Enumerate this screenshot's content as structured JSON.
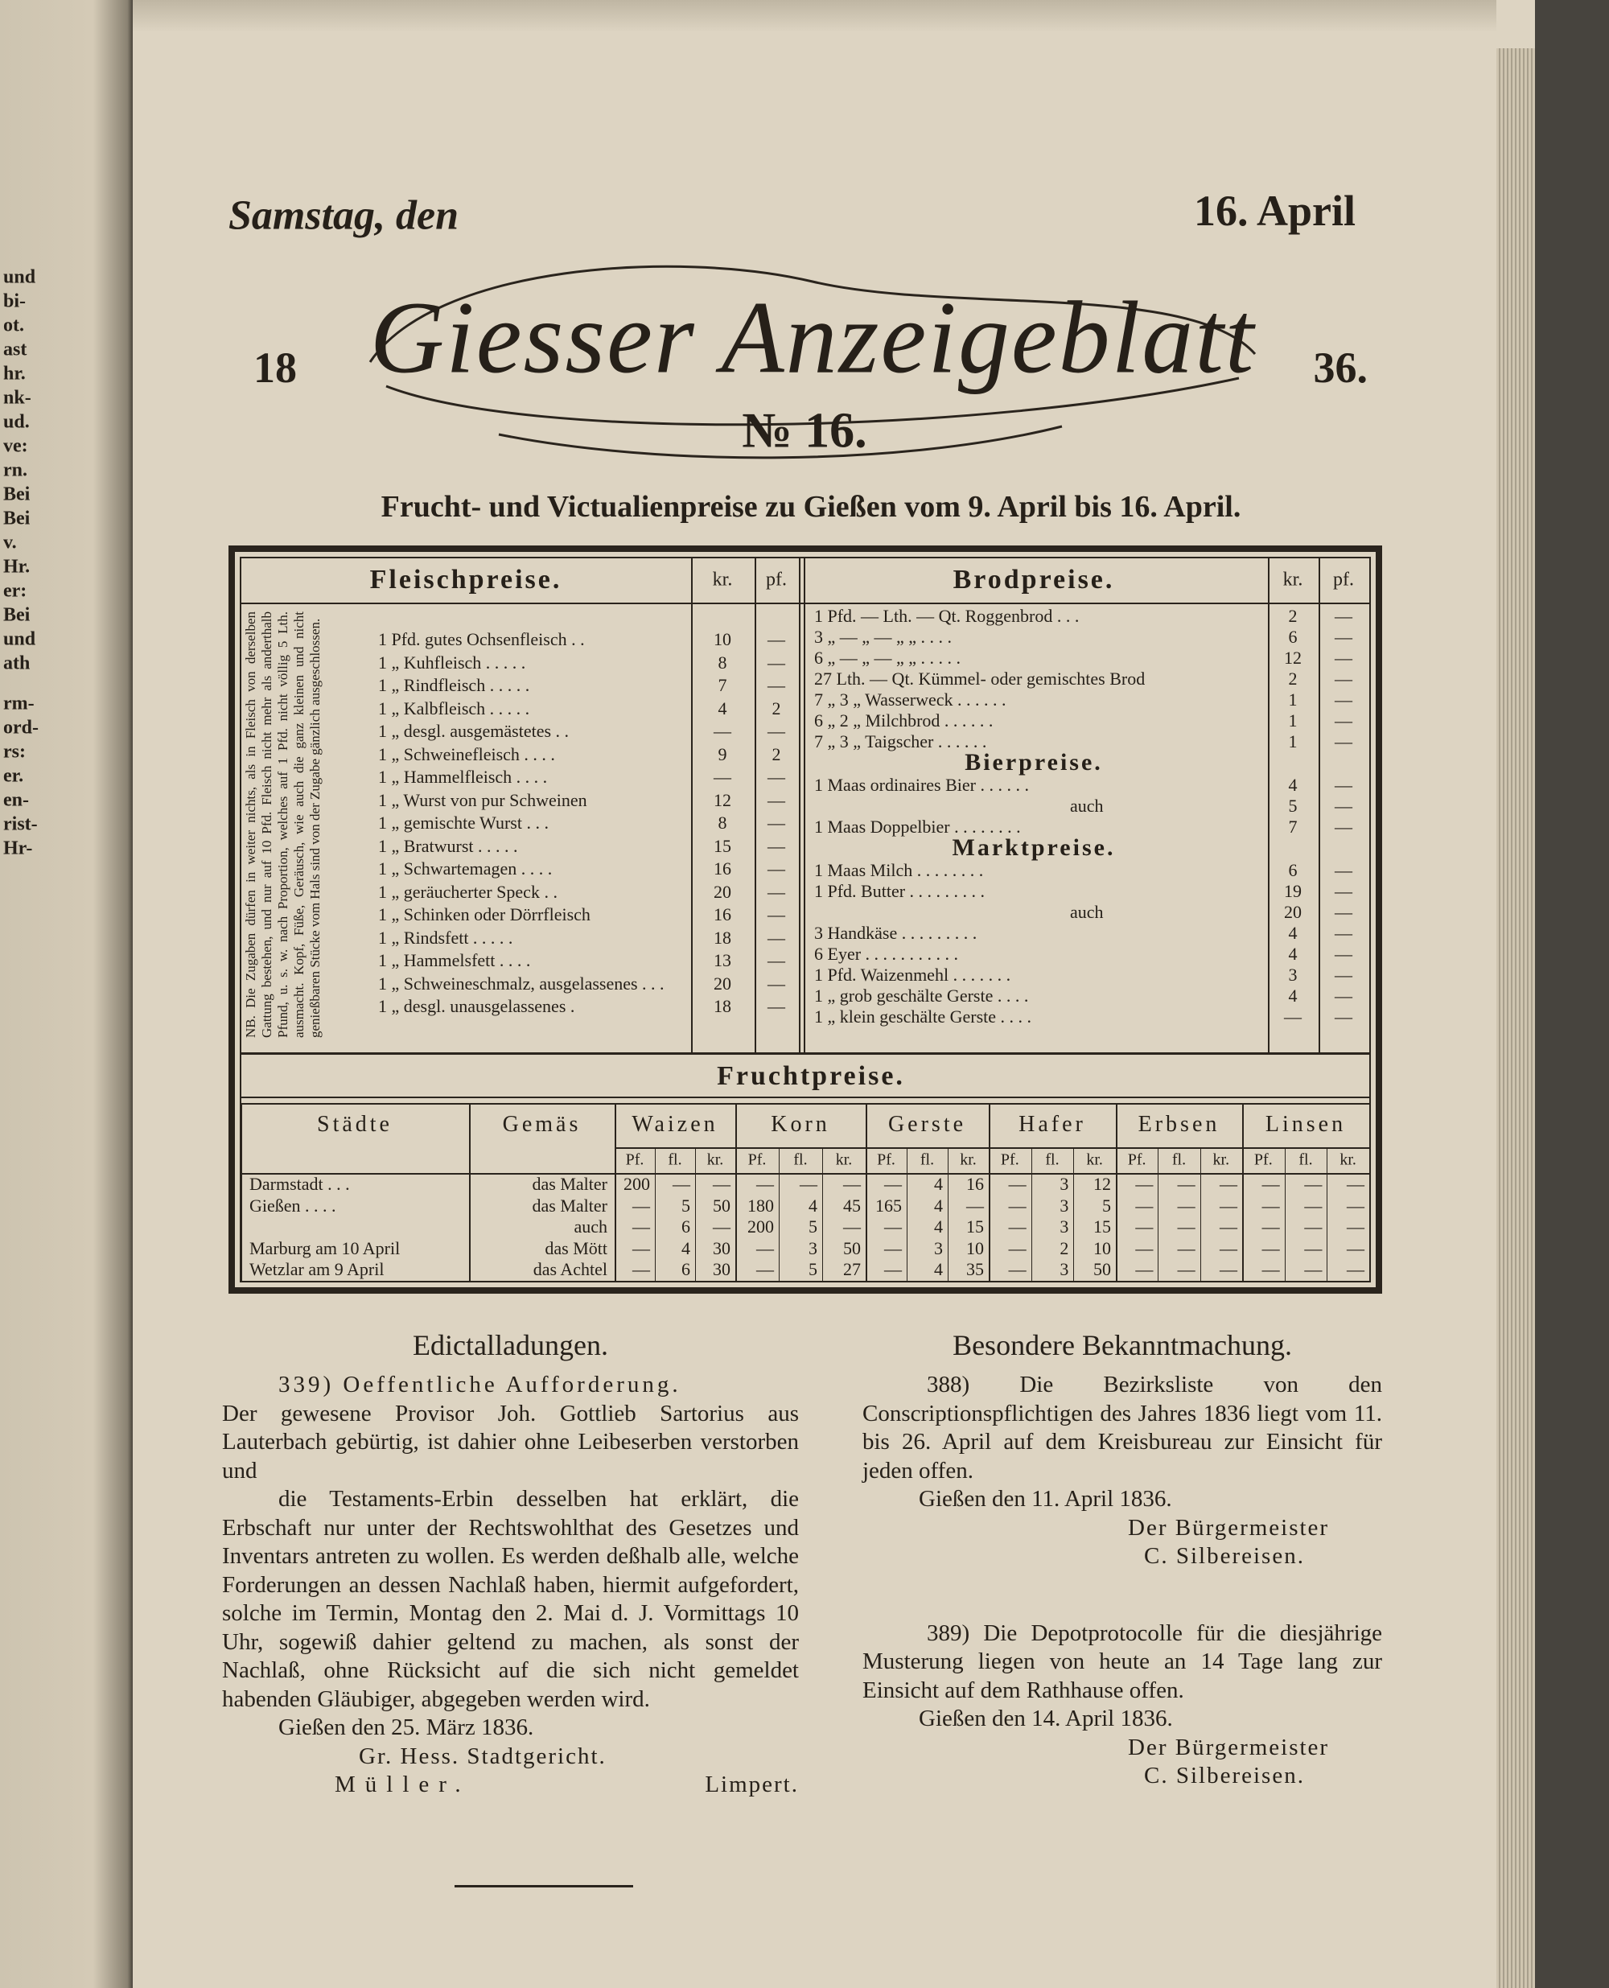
{
  "left_margin": [
    "und",
    "bi-",
    "ot.",
    "ast",
    "hr.",
    "nk-",
    "ud.",
    "ve:",
    "rn.",
    "Bei",
    "Bei",
    "v.",
    "Hr.",
    "er:",
    "Bei",
    "und",
    "ath",
    "rm-",
    "ord-",
    "rs:",
    "er.",
    "en-",
    "rist-",
    "Hr-"
  ],
  "header": {
    "day": "Samstag, den",
    "date": "16. April",
    "year_left": "18",
    "year_right": "36.",
    "masthead": "Giesser Anzeigeblatt",
    "number": "№ 16."
  },
  "subtitle": "Frucht- und Victualienpreise zu Gießen vom 9. April bis 16. April.",
  "price_table": {
    "meat": {
      "title": "Fleischpreise.",
      "columns": [
        "kr.",
        "pf."
      ],
      "note": "NB. Die Zugaben dürfen in weiter nichts, als in Fleisch von derselben Gattung bestehen, und nur auf 10 Pfd. Fleisch nicht mehr als anderthalb Pfund, u. s. w. nach Proportion, welches auf 1 Pfd. nicht völlig 5 Lth. ausmacht. Kopf, Füße, Geräusch, wie auch die ganz kleinen und nicht genießbaren Stücke vom Hals sind von der Zugabe gänzlich ausgeschlossen.",
      "rows": [
        [
          "1 Pfd. gutes Ochsenfleisch . .",
          "10",
          "—"
        ],
        [
          "1 „ Kuhfleisch . . . . .",
          "8",
          "—"
        ],
        [
          "1 „ Rindfleisch . . . . .",
          "7",
          "—"
        ],
        [
          "1 „ Kalbfleisch . . . . .",
          "4",
          "2"
        ],
        [
          "1 „ desgl. ausgemästetes . .",
          "—",
          "—"
        ],
        [
          "1 „ Schweinefleisch . . . .",
          "9",
          "2"
        ],
        [
          "1 „ Hammelfleisch . . . .",
          "—",
          "—"
        ],
        [
          "1 „ Wurst von pur Schweinen",
          "12",
          "—"
        ],
        [
          "1 „ gemischte Wurst . . .",
          "8",
          "—"
        ],
        [
          "1 „ Bratwurst . . . . .",
          "15",
          "—"
        ],
        [
          "1 „ Schwartemagen . . . .",
          "16",
          "—"
        ],
        [
          "1 „ geräucherter Speck . .",
          "20",
          "—"
        ],
        [
          "1 „ Schinken oder Dörrfleisch",
          "16",
          "—"
        ],
        [
          "1 „ Rindsfett . . . . .",
          "18",
          "—"
        ],
        [
          "1 „ Hammelsfett . . . .",
          "13",
          "—"
        ],
        [
          "1 „ Schweineschmalz, ausgelassenes . . .",
          "20",
          "—"
        ],
        [
          "1 „ desgl. unausgelassenes .",
          "18",
          "—"
        ]
      ]
    },
    "bread": {
      "title": "Brodpreise.",
      "columns": [
        "kr.",
        "pf."
      ],
      "rows": [
        [
          "1 Pfd. — Lth. — Qt. Roggenbrod . . .",
          "2",
          "—"
        ],
        [
          "3 „ — „ — „ „ . . . .",
          "6",
          "—"
        ],
        [
          "6 „ — „ — „ „ . . . . .",
          "12",
          "—"
        ],
        [
          "27 Lth. — Qt. Kümmel- oder gemischtes Brod",
          "2",
          "—"
        ],
        [
          "7 „ 3 „ Wasserweck . . . . . .",
          "1",
          "—"
        ],
        [
          "6 „ 2 „ Milchbrod . . . . . .",
          "1",
          "—"
        ],
        [
          "7 „ 3 „ Taigscher . . . . . .",
          "1",
          "—"
        ]
      ]
    },
    "beer": {
      "title": "Bierpreise.",
      "rows": [
        [
          "1 Maas ordinaires Bier . . . . . .",
          "4",
          "—"
        ],
        [
          "auch",
          "5",
          "—"
        ],
        [
          "1 Maas Doppelbier . . . . . . . .",
          "7",
          "—"
        ]
      ]
    },
    "market": {
      "title": "Marktpreise.",
      "rows": [
        [
          "1 Maas Milch . . . . . . . .",
          "6",
          "—"
        ],
        [
          "1 Pfd. Butter . . . . . . . . .",
          "19",
          "—"
        ],
        [
          "auch",
          "20",
          "—"
        ],
        [
          "3 Handkäse . . . . . . . . .",
          "4",
          "—"
        ],
        [
          "6 Eyer . . . . . . . . . . .",
          "4",
          "—"
        ],
        [
          "1 Pfd. Waizenmehl . . . . . . .",
          "3",
          "—"
        ],
        [
          "1 „ grob geschälte Gerste . . . .",
          "4",
          "—"
        ],
        [
          "1 „ klein geschälte Gerste . . . .",
          "—",
          "—"
        ]
      ]
    },
    "grain": {
      "title": "Fruchtpreise.",
      "columns": [
        "Städte",
        "Gemäs",
        "Waizen",
        "Korn",
        "Gerste",
        "Hafer",
        "Erbsen",
        "Linsen"
      ],
      "subcolumns": [
        "Pf.",
        "fl.",
        "kr."
      ],
      "rows": [
        [
          "Darmstadt . . .",
          "das Malter",
          "200",
          "—",
          "—",
          "—",
          "—",
          "—",
          "—",
          "4",
          "16",
          "—",
          "3",
          "12",
          "—",
          "—",
          "—",
          "—",
          "—",
          "—"
        ],
        [
          "Gießen . . . .",
          "das Malter",
          "—",
          "5",
          "50",
          "180",
          "4",
          "45",
          "165",
          "4",
          "—",
          "—",
          "3",
          "5",
          "—",
          "—",
          "—",
          "—",
          "—",
          "—"
        ],
        [
          null,
          "auch",
          "—",
          "6",
          "—",
          "200",
          "5",
          "—",
          "—",
          "4",
          "15",
          "—",
          "3",
          "15",
          "—",
          "—",
          "—",
          "—",
          "—",
          "—"
        ],
        [
          "Marburg am 10 April",
          "das Mött",
          "—",
          "4",
          "30",
          "—",
          "3",
          "50",
          "—",
          "3",
          "10",
          "—",
          "2",
          "10",
          "—",
          "—",
          "—",
          "—",
          "—",
          "—"
        ],
        [
          "Wetzlar am 9 April",
          "das Achtel",
          "—",
          "6",
          "30",
          "—",
          "5",
          "27",
          "—",
          "4",
          "35",
          "—",
          "3",
          "50",
          "—",
          "—",
          "—",
          "—",
          "—",
          "—"
        ]
      ]
    }
  },
  "notices_left": {
    "title": "Edictalladungen.",
    "items": [
      {
        "heading": "339) Oeffentliche Aufforderung.",
        "paragraphs": [
          "Der gewesene Provisor Joh. Gottlieb Sartorius aus Lauterbach gebürtig, ist dahier ohne Leibeserben verstorben und",
          "die Testaments-Erbin desselben hat erklärt, die Erbschaft nur unter der Rechtswohlthat des Gesetzes und Inventars antreten zu wollen. Es werden deßhalb alle, welche Forderungen an dessen Nachlaß haben, hiermit aufgefordert, solche im Termin, Montag den 2. Mai d. J. Vormittags 10 Uhr, sogewiß dahier geltend zu machen, als sonst der Nachlaß, ohne Rücksicht auf die sich nicht gemeldet habenden Gläubiger, abgegeben werden wird."
        ],
        "date": "Gießen den 25. März 1836.",
        "signatures": [
          "Gr. Hess. Stadtgericht.",
          "Müller.",
          "Limpert."
        ]
      }
    ]
  },
  "notices_right": {
    "title": "Besondere Bekanntmachung.",
    "items": [
      {
        "paragraphs": [
          "388) Die Bezirksliste von den Conscriptionspflichtigen des Jahres 1836 liegt vom 11. bis 26. April auf dem Kreisbureau zur Einsicht für jeden offen."
        ],
        "date": "Gießen den 11. April 1836.",
        "signatures": [
          "Der Bürgermeister",
          "C. Silbereisen."
        ]
      },
      {
        "paragraphs": [
          "389) Die Depotprotocolle für die diesjährige Musterung liegen von heute an 14 Tage lang zur Einsicht auf dem Rathhause offen."
        ],
        "date": "Gießen den 14. April 1836.",
        "signatures": [
          "Der Bürgermeister",
          "C. Silbereisen."
        ]
      }
    ]
  }
}
